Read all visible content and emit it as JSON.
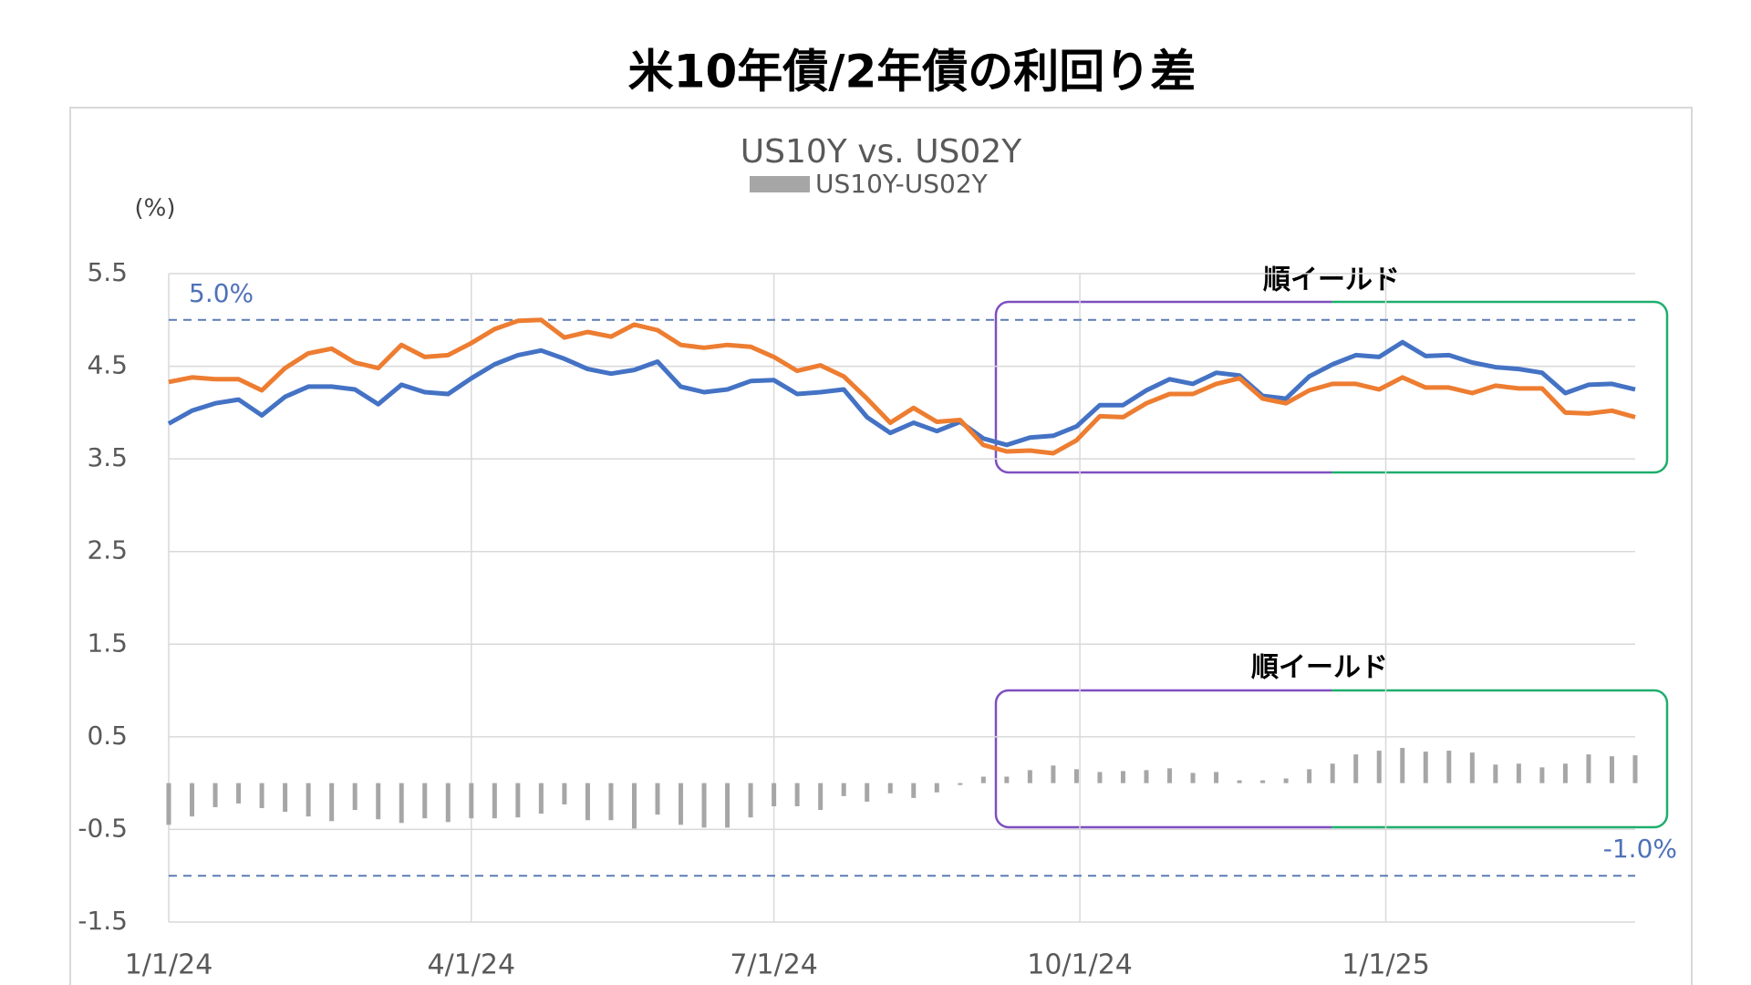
{
  "chart_data": {
    "type": "line-bar",
    "title": "米10年債/2年債の利回り差",
    "chart_title": "US10Y vs. US02Y",
    "unit_label": "(%)",
    "x": [
      "1/1/24",
      "1/8/24",
      "1/15/24",
      "1/22/24",
      "1/29/24",
      "2/5/24",
      "2/12/24",
      "2/19/24",
      "2/26/24",
      "3/4/24",
      "3/11/24",
      "3/18/24",
      "3/25/24",
      "4/1/24",
      "4/8/24",
      "4/15/24",
      "4/22/24",
      "4/29/24",
      "5/6/24",
      "5/13/24",
      "5/20/24",
      "5/27/24",
      "6/3/24",
      "6/10/24",
      "6/17/24",
      "6/24/24",
      "7/1/24",
      "7/8/24",
      "7/15/24",
      "7/22/24",
      "7/29/24",
      "8/5/24",
      "8/12/24",
      "8/19/24",
      "8/26/24",
      "9/2/24",
      "9/9/24",
      "9/16/24",
      "9/23/24",
      "9/30/24",
      "10/7/24",
      "10/14/24",
      "10/21/24",
      "10/28/24",
      "11/4/24",
      "11/11/24",
      "11/18/24",
      "11/25/24",
      "12/2/24",
      "12/9/24",
      "12/16/24",
      "12/23/24",
      "12/30/24",
      "1/6/25",
      "1/13/25",
      "1/20/25",
      "1/27/25",
      "2/3/25",
      "2/10/25",
      "2/17/25",
      "2/24/25",
      "3/3/25",
      "3/10/25",
      "3/17/25"
    ],
    "series": [
      {
        "kind": "line",
        "color": "#4472c4",
        "values": [
          3.88,
          4.02,
          4.1,
          4.14,
          3.97,
          4.17,
          4.28,
          4.28,
          4.25,
          4.09,
          4.3,
          4.22,
          4.2,
          4.37,
          4.52,
          4.62,
          4.67,
          4.58,
          4.47,
          4.42,
          4.46,
          4.55,
          4.28,
          4.22,
          4.25,
          4.34,
          4.35,
          4.2,
          4.22,
          4.25,
          3.95,
          3.78,
          3.89,
          3.8,
          3.9,
          3.72,
          3.65,
          3.73,
          3.75,
          3.85,
          4.08,
          4.08,
          4.24,
          4.36,
          4.31,
          4.43,
          4.4,
          4.18,
          4.15,
          4.39,
          4.52,
          4.62,
          4.6,
          4.76,
          4.61,
          4.62,
          4.54,
          4.49,
          4.47,
          4.43,
          4.21,
          4.3,
          4.31,
          4.25
        ]
      },
      {
        "kind": "line",
        "color": "#ed7d31",
        "values": [
          4.33,
          4.38,
          4.36,
          4.36,
          4.24,
          4.48,
          4.64,
          4.69,
          4.54,
          4.48,
          4.73,
          4.6,
          4.62,
          4.75,
          4.9,
          4.99,
          5.0,
          4.81,
          4.87,
          4.82,
          4.95,
          4.89,
          4.73,
          4.7,
          4.73,
          4.71,
          4.6,
          4.45,
          4.51,
          4.39,
          4.15,
          3.89,
          4.05,
          3.9,
          3.92,
          3.65,
          3.58,
          3.59,
          3.56,
          3.7,
          3.96,
          3.95,
          4.1,
          4.2,
          4.2,
          4.31,
          4.37,
          4.15,
          4.1,
          4.24,
          4.31,
          4.31,
          4.25,
          4.38,
          4.27,
          4.27,
          4.21,
          4.29,
          4.26,
          4.26,
          4.0,
          3.99,
          4.02,
          3.95
        ]
      },
      {
        "kind": "bar",
        "name": "US10Y-US02Y",
        "color": "#a6a6a6",
        "values": [
          -0.45,
          -0.36,
          -0.26,
          -0.22,
          -0.27,
          -0.31,
          -0.36,
          -0.41,
          -0.29,
          -0.39,
          -0.43,
          -0.38,
          -0.42,
          -0.38,
          -0.38,
          -0.37,
          -0.33,
          -0.23,
          -0.4,
          -0.4,
          -0.49,
          -0.34,
          -0.45,
          -0.48,
          -0.48,
          -0.37,
          -0.25,
          -0.25,
          -0.29,
          -0.14,
          -0.2,
          -0.11,
          -0.16,
          -0.1,
          -0.02,
          0.07,
          0.07,
          0.14,
          0.19,
          0.15,
          0.12,
          0.13,
          0.14,
          0.16,
          0.11,
          0.12,
          0.03,
          0.03,
          0.05,
          0.15,
          0.21,
          0.31,
          0.35,
          0.38,
          0.34,
          0.35,
          0.33,
          0.2,
          0.21,
          0.17,
          0.21,
          0.31,
          0.29,
          0.3
        ]
      }
    ],
    "xlim": [
      "1/1/24",
      "3/17/25"
    ],
    "xticks": [
      "1/1/24",
      "4/1/24",
      "7/1/24",
      "10/1/24",
      "1/1/25"
    ],
    "ylim": [
      -1.5,
      5.5
    ],
    "yticks": [
      -1.5,
      -0.5,
      0.5,
      1.5,
      2.5,
      3.5,
      4.5,
      5.5
    ],
    "grid": true,
    "reference_lines": [
      {
        "value": 5,
        "label": "5.0%"
      },
      {
        "value": -1,
        "label": "-1.0%"
      }
    ],
    "annotations": [
      "順イールド",
      "順イールド"
    ]
  }
}
